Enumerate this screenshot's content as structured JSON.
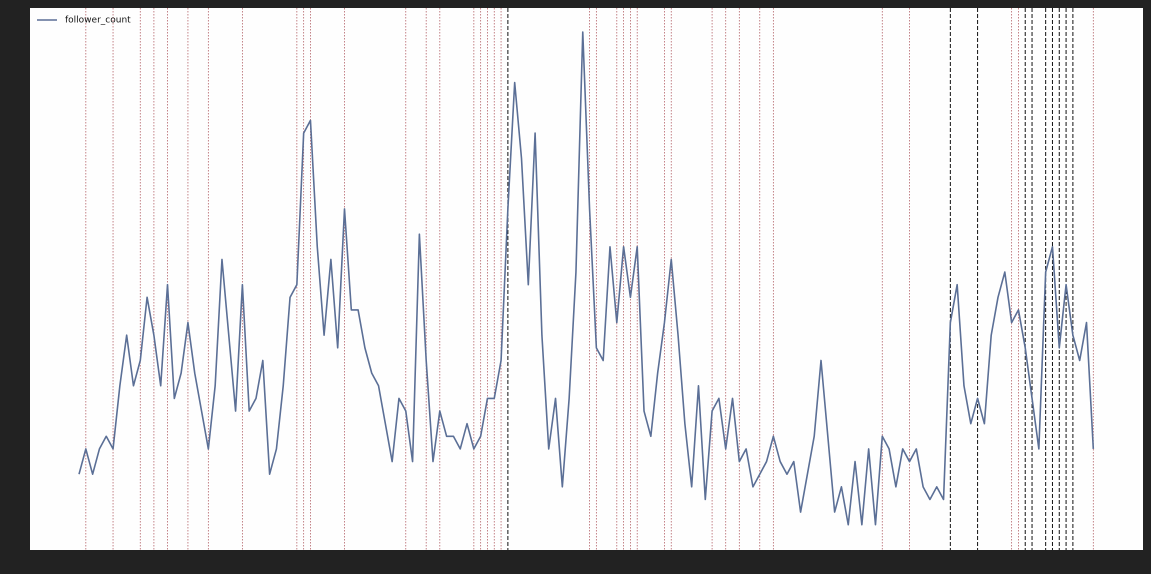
{
  "chart_data": {
    "type": "line",
    "series": [
      {
        "name": "follower_count",
        "color": "#5b6f96",
        "values": [
          5,
          7,
          5,
          7,
          8,
          7,
          12,
          16,
          12,
          14,
          19,
          16,
          12,
          20,
          11,
          13,
          17,
          13,
          10,
          7,
          12,
          22,
          16,
          10,
          20,
          10,
          11,
          14,
          5,
          7,
          12,
          19,
          20,
          32,
          33,
          23,
          16,
          22,
          15,
          26,
          18,
          18,
          15,
          13,
          12,
          9,
          6,
          11,
          10,
          6,
          24,
          14,
          6,
          10,
          8,
          8,
          7,
          9,
          7,
          8,
          11,
          11,
          14,
          26,
          36,
          30,
          20,
          32,
          16,
          7,
          11,
          4,
          11,
          21,
          40,
          26,
          15,
          14,
          23,
          17,
          23,
          19,
          23,
          10,
          8,
          13,
          17,
          22,
          16,
          9,
          4,
          12,
          3,
          10,
          11,
          7,
          11,
          6,
          7,
          4,
          5,
          6,
          8,
          6,
          5,
          6,
          2,
          5,
          8,
          14,
          8,
          2,
          4,
          1,
          6,
          1,
          7,
          1,
          8,
          7,
          4,
          7,
          6,
          7,
          4,
          3,
          4,
          3,
          17,
          20,
          12,
          9,
          11,
          9,
          16,
          19,
          21,
          17,
          18,
          15,
          11,
          7,
          21,
          23,
          15,
          20,
          16,
          14,
          17,
          7
        ]
      }
    ],
    "xlim": [
      -7.2,
      156.3
    ],
    "ylim": [
      -1,
      41.9
    ],
    "red_vlines": [
      1,
      5,
      9,
      11,
      13,
      16,
      19,
      24,
      32,
      33,
      34,
      39,
      48,
      51,
      53,
      58,
      59,
      60,
      61,
      62,
      75,
      76,
      79,
      80,
      81,
      82,
      86,
      87,
      93,
      95,
      97,
      100,
      102,
      118,
      122,
      137,
      138,
      149
    ],
    "black_vlines": [
      63,
      128,
      132,
      139,
      140,
      142,
      143,
      144,
      145,
      146
    ],
    "legend": "upper left"
  }
}
